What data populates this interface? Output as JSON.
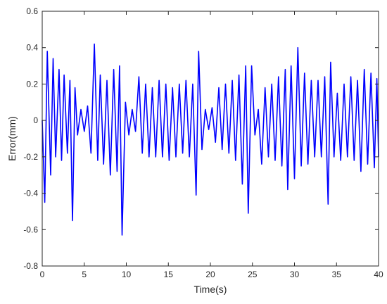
{
  "chart_data": {
    "type": "line",
    "xlabel": "Time(s)",
    "ylabel": "Error(mm)",
    "xlim": [
      0,
      40
    ],
    "ylim": [
      -0.8,
      0.6
    ],
    "xticks": [
      0,
      5,
      10,
      15,
      20,
      25,
      30,
      35,
      40
    ],
    "xtick_labels": [
      "0",
      "5",
      "10",
      "15",
      "20",
      "25",
      "30",
      "35",
      "40"
    ],
    "yticks": [
      -0.8,
      -0.6,
      -0.4,
      -0.2,
      0,
      0.2,
      0.4,
      0.6
    ],
    "ytick_labels": [
      "-0.8",
      "-0.6",
      "-0.4",
      "-0.2",
      "0",
      "0.2",
      "0.4",
      "0.6"
    ],
    "grid": false,
    "line_color": "#0000ff",
    "series": [
      {
        "x": [
          0.0,
          0.3,
          0.6,
          1.0,
          1.3,
          1.6,
          2.0,
          2.3,
          2.6,
          3.0,
          3.3,
          3.6,
          3.9,
          4.2,
          4.6,
          5.0,
          5.4,
          5.8,
          6.2,
          6.6,
          6.9,
          7.3,
          7.7,
          8.1,
          8.5,
          8.9,
          9.2,
          9.5,
          9.9,
          10.3,
          10.7,
          11.1,
          11.5,
          11.9,
          12.3,
          12.7,
          13.1,
          13.5,
          13.9,
          14.3,
          14.7,
          15.1,
          15.5,
          15.9,
          16.3,
          16.7,
          17.1,
          17.5,
          17.9,
          18.3,
          18.6,
          19.0,
          19.4,
          19.8,
          20.2,
          20.6,
          21.0,
          21.4,
          21.8,
          22.2,
          22.6,
          23.0,
          23.4,
          23.8,
          24.2,
          24.5,
          24.9,
          25.3,
          25.7,
          26.1,
          26.5,
          26.9,
          27.3,
          27.7,
          28.1,
          28.5,
          28.9,
          29.2,
          29.6,
          30.0,
          30.4,
          30.8,
          31.2,
          31.6,
          32.0,
          32.4,
          32.8,
          33.2,
          33.6,
          34.0,
          34.3,
          34.7,
          35.1,
          35.5,
          35.9,
          36.3,
          36.7,
          37.1,
          37.5,
          37.9,
          38.3,
          38.7,
          39.1,
          39.5,
          39.8,
          40.0
        ],
        "y": [
          0.0,
          -0.45,
          0.38,
          -0.3,
          0.34,
          -0.2,
          0.28,
          -0.22,
          0.25,
          -0.18,
          0.22,
          -0.55,
          0.18,
          -0.08,
          0.06,
          -0.06,
          0.08,
          -0.18,
          0.42,
          -0.22,
          0.25,
          -0.24,
          0.22,
          -0.3,
          0.28,
          -0.28,
          0.3,
          -0.63,
          0.1,
          -0.08,
          0.06,
          -0.06,
          0.24,
          -0.18,
          0.2,
          -0.2,
          0.18,
          -0.2,
          0.22,
          -0.2,
          0.2,
          -0.22,
          0.18,
          -0.2,
          0.2,
          -0.18,
          0.22,
          -0.2,
          0.2,
          -0.41,
          0.38,
          -0.16,
          0.06,
          -0.05,
          0.07,
          -0.12,
          0.18,
          -0.16,
          0.2,
          -0.18,
          0.22,
          -0.22,
          0.25,
          -0.35,
          0.3,
          -0.51,
          0.3,
          -0.08,
          0.06,
          -0.24,
          0.18,
          -0.2,
          0.2,
          -0.22,
          0.24,
          -0.25,
          0.28,
          -0.38,
          0.3,
          -0.32,
          0.4,
          -0.25,
          0.26,
          -0.24,
          0.22,
          -0.2,
          0.22,
          -0.2,
          0.24,
          -0.46,
          0.32,
          -0.2,
          0.15,
          -0.22,
          0.2,
          -0.2,
          0.24,
          -0.22,
          0.22,
          -0.28,
          0.28,
          -0.24,
          0.26,
          -0.26,
          0.23,
          -0.2
        ]
      }
    ]
  }
}
